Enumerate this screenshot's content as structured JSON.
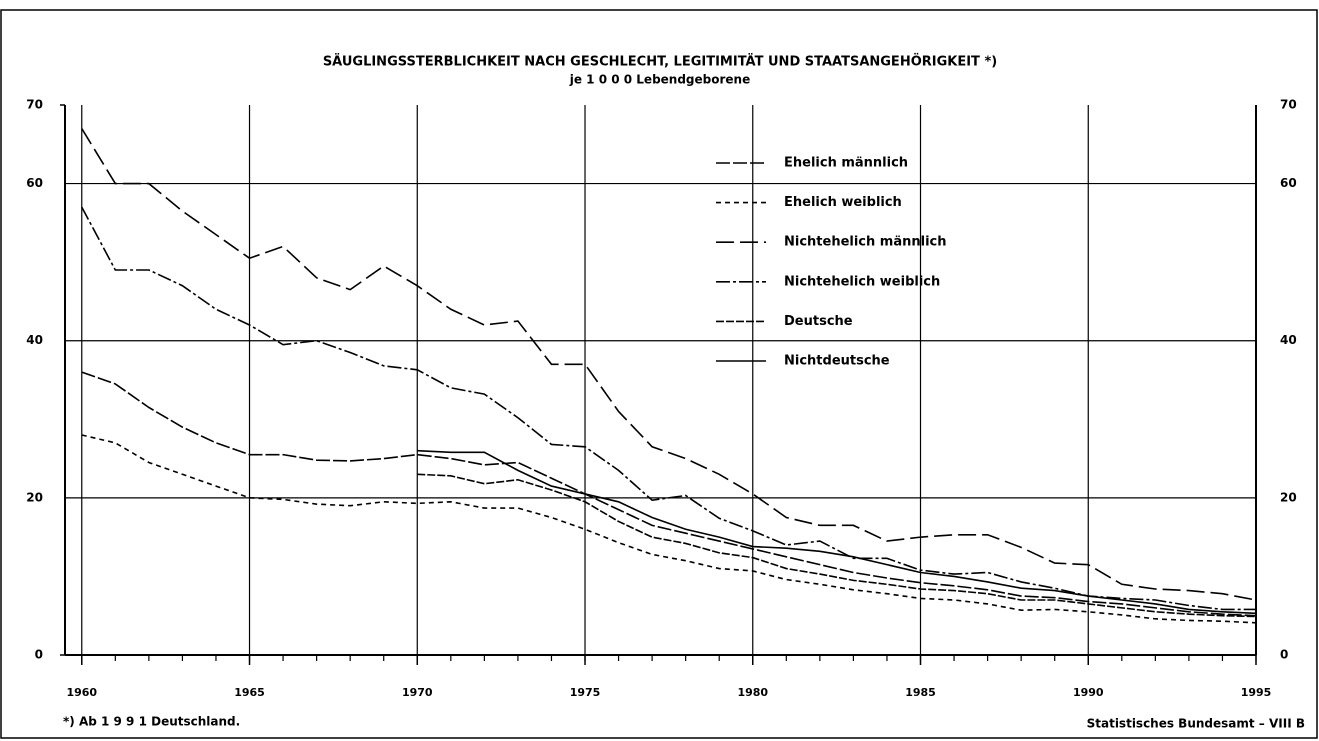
{
  "chart_data": {
    "type": "line",
    "title": "SÄUGLINGSSTERBLICHKEIT NACH GESCHLECHT, LEGITIMITÄT UND STAATSANGEHÖRIGKEIT *)",
    "subtitle": "je 1 0 0 0 Lebendgeborene",
    "footnote": "*) Ab 1 9 9 1 Deutschland.",
    "source": "Statistisches Bundesamt – VIII B",
    "x": [
      1960,
      1961,
      1962,
      1963,
      1964,
      1965,
      1966,
      1967,
      1968,
      1969,
      1970,
      1971,
      1972,
      1973,
      1974,
      1975,
      1976,
      1977,
      1978,
      1979,
      1980,
      1981,
      1982,
      1983,
      1984,
      1985,
      1986,
      1987,
      1988,
      1989,
      1990,
      1991,
      1992,
      1993,
      1994,
      1995
    ],
    "xlim": [
      1959.5,
      1995
    ],
    "xticks": [
      1960,
      1965,
      1970,
      1975,
      1980,
      1985,
      1990,
      1995
    ],
    "ylim": [
      0,
      70
    ],
    "yticks": [
      0,
      20,
      40,
      60,
      70
    ],
    "grid": true,
    "series": [
      {
        "name": "Ehelich männlich",
        "color": "#000000",
        "dash": "14 3",
        "values": [
          36,
          34.5,
          31.5,
          29,
          27,
          25.5,
          25.5,
          24.8,
          24.7,
          25,
          25.5,
          25,
          24.2,
          24.5,
          22.5,
          20.5,
          18.5,
          16.5,
          15.5,
          14.5,
          13.5,
          12.5,
          11.5,
          10.5,
          9.8,
          9.2,
          8.8,
          8.3,
          7.5,
          7.3,
          6.8,
          6.5,
          6,
          5.5,
          5.2,
          5
        ]
      },
      {
        "name": "Ehelich weiblich",
        "color": "#000000",
        "dash": "5 4",
        "values": [
          28,
          27,
          24.5,
          23,
          21.5,
          20,
          19.8,
          19.2,
          19,
          19.5,
          19.3,
          19.5,
          18.7,
          18.7,
          17.5,
          16,
          14.3,
          12.8,
          12,
          11,
          10.7,
          9.6,
          9,
          8.3,
          7.8,
          7.2,
          7,
          6.5,
          5.7,
          5.8,
          5.5,
          5.1,
          4.6,
          4.4,
          4.3,
          4.1
        ]
      },
      {
        "name": "Nichtehelich männlich",
        "color": "#000000",
        "dash": "18 6",
        "values": [
          67,
          60,
          60,
          56.5,
          53.5,
          50.5,
          52,
          48,
          46.5,
          49.5,
          47,
          44,
          42,
          42.5,
          37,
          37,
          31,
          26.5,
          25,
          23,
          20.5,
          17.5,
          16.5,
          16.5,
          14.5,
          15,
          15.3,
          15.3,
          13.7,
          11.7,
          11.5,
          9,
          8.4,
          8.2,
          7.8,
          7
        ]
      },
      {
        "name": "Nichtehelich weiblich",
        "color": "#000000",
        "dash": "14 3 3 3",
        "values": [
          57,
          49,
          49,
          47,
          44,
          42,
          39.5,
          40,
          38.5,
          36.8,
          36.3,
          34,
          33.2,
          30.2,
          26.8,
          26.5,
          23.5,
          19.7,
          20.3,
          17.4,
          15.8,
          14,
          14.5,
          12.3,
          12.3,
          10.8,
          10.3,
          10.5,
          9.3,
          8.5,
          7.5,
          7.2,
          7,
          6.3,
          5.8,
          5.8
        ]
      },
      {
        "name": "Deutsche",
        "color": "#000000",
        "dash": "8 2",
        "values": [
          null,
          null,
          null,
          null,
          null,
          null,
          null,
          null,
          null,
          null,
          23,
          22.8,
          21.8,
          22.3,
          21,
          19.5,
          17,
          15,
          14.2,
          13,
          12.4,
          11,
          10.3,
          9.5,
          9,
          8.4,
          8.2,
          7.8,
          7,
          7,
          6.5,
          6,
          5.5,
          5.2,
          5,
          4.9
        ]
      },
      {
        "name": "Nichtdeutsche",
        "color": "#000000",
        "dash": "none",
        "values": [
          null,
          null,
          null,
          null,
          null,
          null,
          null,
          null,
          null,
          null,
          26,
          25.8,
          25.8,
          23.5,
          21.5,
          20.5,
          19.5,
          17.5,
          16,
          15,
          13.8,
          13.6,
          13.2,
          12.5,
          11.5,
          10.5,
          10,
          9.3,
          8.5,
          8.2,
          7.5,
          7,
          6.5,
          5.8,
          5.5,
          5.3
        ]
      }
    ]
  }
}
